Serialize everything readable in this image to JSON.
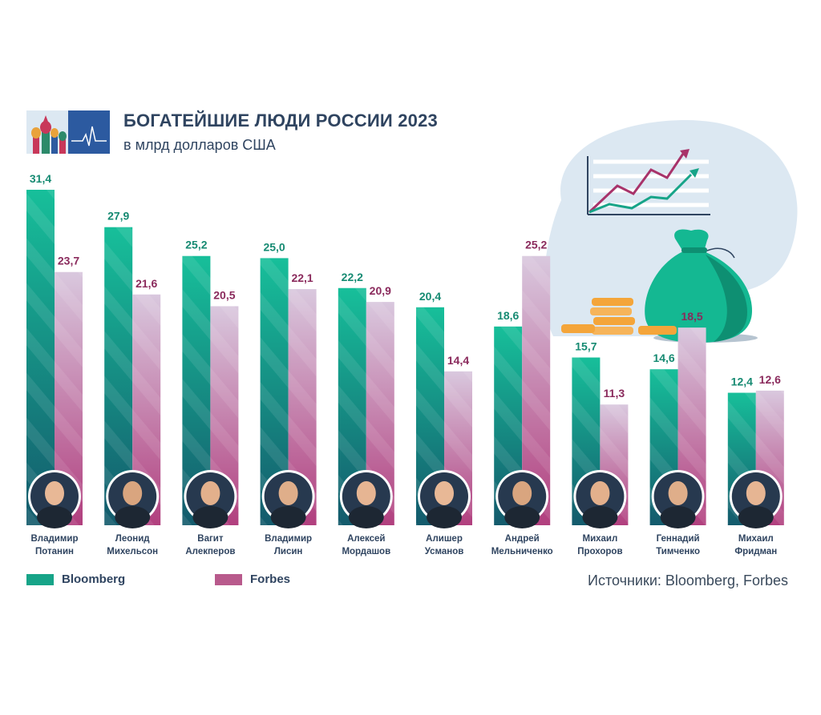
{
  "header": {
    "title": "БОГАТЕЙШИЕ ЛЮДИ РОССИИ 2023",
    "subtitle": "в млрд долларов США"
  },
  "legend": {
    "bloomberg": "Bloomberg",
    "forbes": "Forbes"
  },
  "source": "Источники: Bloomberg, Forbes",
  "colors": {
    "bloomberg_top": "#17bf9a",
    "bloomberg_bottom": "#145a6c",
    "forbes_top": "#d9c8de",
    "forbes_bottom": "#b13f7e",
    "bloomberg_label": "#168a72",
    "forbes_label": "#8a2a5c",
    "text_dark": "#2f4460"
  },
  "chart_data": {
    "type": "bar",
    "title": "БОГАТЕЙШИЕ ЛЮДИ РОССИИ 2023",
    "subtitle": "в млрд долларов США",
    "xlabel": "",
    "ylabel": "",
    "ylim": [
      0,
      31.4
    ],
    "grid": false,
    "legend": "bottom-left",
    "categories": [
      [
        "Владимир",
        "Потанин"
      ],
      [
        "Леонид",
        "Михельсон"
      ],
      [
        "Вагит",
        "Алекперов"
      ],
      [
        "Владимир",
        "Лисин"
      ],
      [
        "Алексей",
        "Мордашов"
      ],
      [
        "Алишер",
        "Усманов"
      ],
      [
        "Андрей",
        "Мельниченко"
      ],
      [
        "Михаил",
        "Прохоров"
      ],
      [
        "Геннадий",
        "Тимченко"
      ],
      [
        "Михаил",
        "Фридман"
      ]
    ],
    "series": [
      {
        "name": "Bloomberg",
        "values": [
          31.4,
          27.9,
          25.2,
          25.0,
          22.2,
          20.4,
          18.6,
          15.7,
          14.6,
          12.4
        ],
        "labels": [
          "31,4",
          "27,9",
          "25,2",
          "25,0",
          "22,2",
          "20,4",
          "18,6",
          "15,7",
          "14,6",
          "12,4"
        ]
      },
      {
        "name": "Forbes",
        "values": [
          23.7,
          21.6,
          20.5,
          22.1,
          20.9,
          14.4,
          25.2,
          11.3,
          18.5,
          12.6
        ],
        "labels": [
          "23,7",
          "21,6",
          "20,5",
          "22,1",
          "20,9",
          "14,4",
          "25,2",
          "11,3",
          "18,5",
          "12,6"
        ]
      }
    ]
  }
}
